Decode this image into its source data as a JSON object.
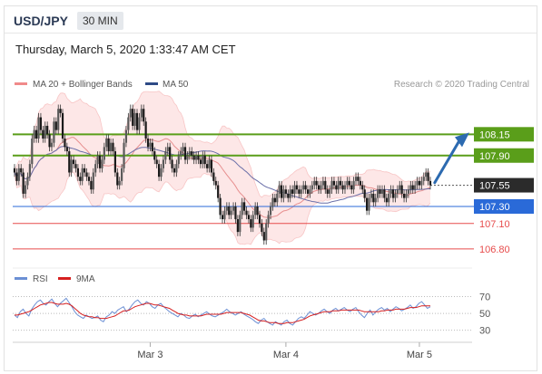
{
  "header": {
    "symbol": "USD/JPY",
    "timeframe": "30 MIN",
    "datetime": "Thursday, March 5, 2020 1:33:47 AM CET"
  },
  "legend": {
    "bb_label": "MA 20 + Bollinger Bands",
    "ma50_label": "MA 50",
    "credit": "Research © 2020 Trading Central"
  },
  "rsi_legend": {
    "rsi_label": "RSI",
    "ma9_label": "9MA"
  },
  "colors": {
    "up": "#5a5a5a",
    "down": "#1a1a1a",
    "bb": "#f4a9a9",
    "bbFill": "#fde3e3",
    "ma50": "#6a6fa8",
    "resistance": "#5a9e1a",
    "pivot": "#2a6ad8",
    "support": "#e74c4c",
    "arrow": "#2c6ab0",
    "rsi": "#6b8fd4",
    "rsi_ma": "#d62020"
  },
  "chart_data": [
    {
      "type": "candlestick",
      "x_ticks": [
        "Mar 3",
        "Mar 4",
        "Mar 5"
      ],
      "ylim": [
        106.66,
        108.58
      ],
      "levels": [
        {
          "value": 108.15,
          "label": "108.15",
          "kind": "resistance"
        },
        {
          "value": 107.9,
          "label": "107.90",
          "kind": "resistance"
        },
        {
          "value": 107.55,
          "label": "107.55",
          "kind": "current"
        },
        {
          "value": 107.3,
          "label": "107.30",
          "kind": "pivot"
        },
        {
          "value": 107.1,
          "label": "107.10",
          "kind": "support"
        },
        {
          "value": 106.8,
          "label": "106.80",
          "kind": "support"
        }
      ],
      "tick_index": [
        62,
        124,
        185
      ],
      "arrow": {
        "from_index": 192,
        "from": 107.58,
        "to": 108.15
      },
      "closes": [
        107.7,
        107.6,
        107.75,
        107.7,
        107.45,
        107.55,
        107.65,
        107.8,
        108.1,
        108.2,
        108.1,
        108.35,
        108.2,
        108.1,
        108.25,
        108.15,
        108.0,
        108.05,
        108.3,
        108.2,
        108.45,
        108.4,
        108.1,
        108.0,
        107.95,
        107.7,
        107.85,
        107.8,
        107.75,
        107.65,
        107.6,
        107.75,
        107.7,
        107.65,
        107.6,
        107.5,
        107.7,
        107.8,
        107.9,
        107.75,
        107.85,
        108.0,
        108.1,
        107.95,
        108.05,
        107.95,
        107.7,
        107.55,
        107.6,
        107.75,
        108.05,
        108.2,
        108.35,
        108.45,
        108.25,
        108.4,
        108.2,
        108.35,
        108.45,
        108.3,
        108.1,
        108.0,
        108.05,
        107.95,
        107.85,
        107.8,
        107.65,
        107.75,
        107.85,
        107.95,
        108.0,
        107.85,
        107.75,
        107.7,
        107.8,
        107.9,
        107.95,
        108.0,
        107.85,
        107.9,
        107.95,
        107.9,
        107.85,
        107.9,
        107.85,
        107.8,
        107.9,
        107.8,
        107.75,
        107.85,
        107.7,
        107.6,
        107.55,
        107.4,
        107.2,
        107.15,
        107.25,
        107.3,
        107.2,
        107.25,
        107.3,
        107.15,
        107.0,
        107.2,
        107.35,
        107.25,
        107.2,
        107.15,
        107.05,
        107.2,
        107.3,
        107.2,
        107.1,
        107.0,
        106.9,
        107.1,
        107.2,
        107.3,
        107.4,
        107.35,
        107.45,
        107.55,
        107.4,
        107.5,
        107.45,
        107.4,
        107.5,
        107.45,
        107.55,
        107.5,
        107.45,
        107.5,
        107.55,
        107.5,
        107.45,
        107.5,
        107.55,
        107.6,
        107.55,
        107.5,
        107.55,
        107.6,
        107.5,
        107.45,
        107.5,
        107.6,
        107.55,
        107.5,
        107.6,
        107.55,
        107.5,
        107.55,
        107.6,
        107.55,
        107.5,
        107.6,
        107.65,
        107.6,
        107.55,
        107.5,
        107.4,
        107.25,
        107.4,
        107.45,
        107.35,
        107.4,
        107.5,
        107.45,
        107.5,
        107.4,
        107.35,
        107.45,
        107.5,
        107.4,
        107.45,
        107.5,
        107.55,
        107.45,
        107.4,
        107.45,
        107.5,
        107.55,
        107.5,
        107.55,
        107.6,
        107.55,
        107.6,
        107.65,
        107.7,
        107.6,
        107.55
      ]
    },
    {
      "type": "line",
      "title": "RSI",
      "ylim": [
        22,
        76
      ],
      "y_ticks": [
        70,
        50,
        30
      ],
      "series": [
        {
          "name": "RSI",
          "values": [
            48,
            45,
            52,
            55,
            50,
            47,
            55,
            60,
            64,
            66,
            62,
            60,
            64,
            67,
            62,
            58,
            62,
            65,
            68,
            63,
            58,
            52,
            48,
            46,
            44,
            48,
            46,
            44,
            45,
            47,
            42,
            40,
            46,
            48,
            52,
            50,
            54,
            56,
            58,
            52,
            55,
            60,
            64,
            66,
            62,
            60,
            64,
            62,
            58,
            56,
            60,
            62,
            58,
            55,
            52,
            50,
            48,
            46,
            50,
            48,
            45,
            44,
            47,
            49,
            46,
            48,
            50,
            52,
            49,
            47,
            46,
            48,
            50,
            52,
            55,
            52,
            50,
            48,
            50,
            52,
            49,
            47,
            45,
            43,
            40,
            38,
            42,
            44,
            40,
            38,
            36,
            40,
            38,
            36,
            40,
            42,
            38,
            36,
            40,
            44,
            46,
            44,
            48,
            52,
            50,
            48,
            50,
            53,
            55,
            52,
            50,
            54,
            56,
            53,
            55,
            57,
            54,
            52,
            55,
            57,
            52,
            48,
            45,
            50,
            54,
            48,
            52,
            55,
            57,
            54,
            56,
            52,
            55,
            58,
            56,
            53,
            55,
            57,
            60,
            56,
            58,
            62,
            64,
            60,
            56,
            58
          ]
        },
        {
          "name": "9MA",
          "values": [
            48,
            48,
            49,
            50,
            51,
            52,
            54,
            56,
            58,
            60,
            61,
            62,
            63,
            63,
            62,
            61,
            61,
            61,
            62,
            61,
            59,
            56,
            53,
            50,
            48,
            47,
            46,
            46,
            45,
            45,
            44,
            44,
            44,
            45,
            46,
            47,
            49,
            51,
            53,
            53,
            54,
            56,
            58,
            59,
            60,
            61,
            62,
            62,
            61,
            60,
            60,
            59,
            58,
            57,
            56,
            54,
            52,
            50,
            49,
            48,
            48,
            47,
            47,
            47,
            47,
            47,
            48,
            49,
            49,
            49,
            49,
            49,
            49,
            50,
            51,
            51,
            51,
            51,
            51,
            51,
            50,
            49,
            48,
            46,
            44,
            42,
            41,
            41,
            40,
            39,
            39,
            39,
            38,
            38,
            38,
            39,
            39,
            39,
            40,
            41,
            42,
            43,
            45,
            47,
            48,
            49,
            50,
            51,
            52,
            52,
            52,
            53,
            53,
            53,
            54,
            54,
            54,
            54,
            54,
            54,
            54,
            53,
            52,
            52,
            52,
            52,
            52,
            52,
            53,
            53,
            54,
            54,
            54,
            55,
            55,
            55,
            55,
            56,
            57,
            57,
            57,
            58,
            59,
            59,
            59,
            59
          ]
        }
      ]
    }
  ]
}
